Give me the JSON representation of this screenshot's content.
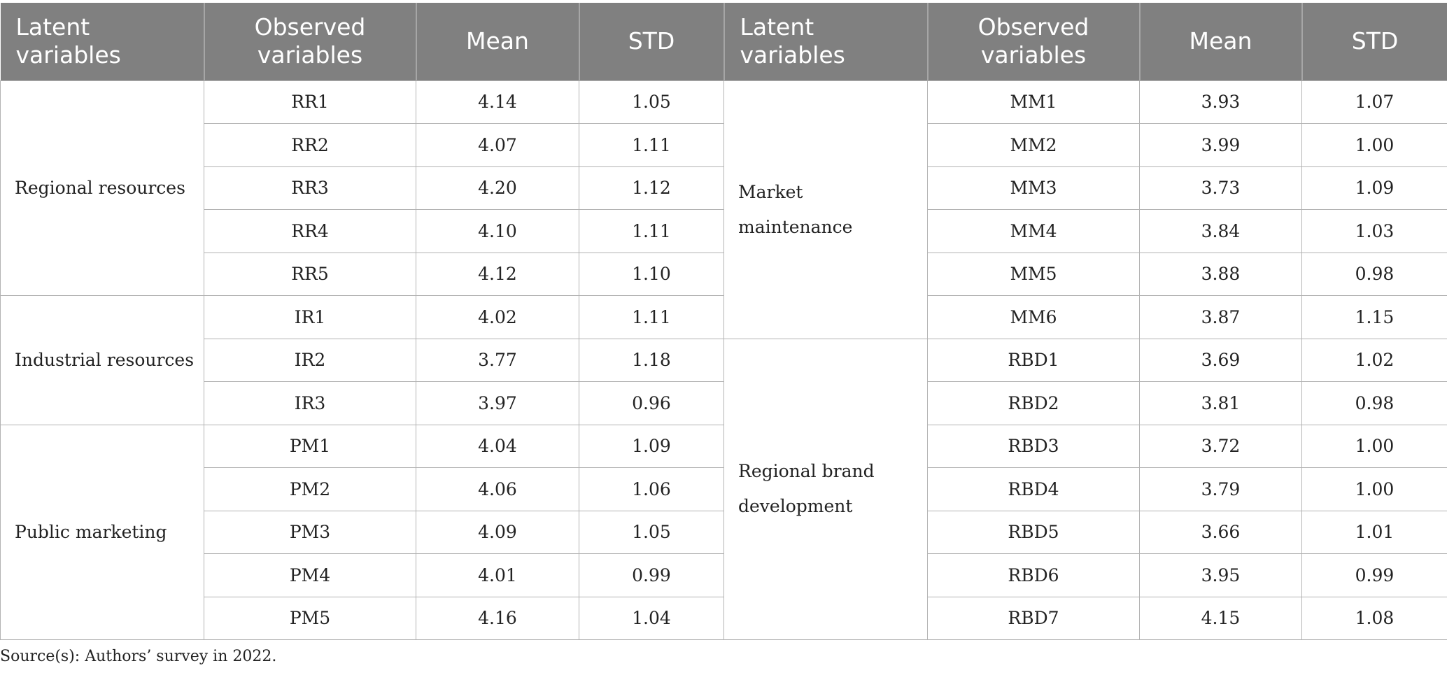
{
  "table": {
    "headers": [
      "Latent variables",
      "Observed variables",
      "Mean",
      "STD",
      "Latent variables",
      "Observed variables",
      "Mean",
      "STD"
    ],
    "left": [
      {
        "latent": "Regional resources",
        "items": [
          {
            "obs": "RR1",
            "mean": "4.14",
            "std": "1.05"
          },
          {
            "obs": "RR2",
            "mean": "4.07",
            "std": "1.11"
          },
          {
            "obs": "RR3",
            "mean": "4.20",
            "std": "1.12"
          },
          {
            "obs": "RR4",
            "mean": "4.10",
            "std": "1.11"
          },
          {
            "obs": "RR5",
            "mean": "4.12",
            "std": "1.10"
          }
        ]
      },
      {
        "latent": "Industrial resources",
        "items": [
          {
            "obs": "IR1",
            "mean": "4.02",
            "std": "1.11"
          },
          {
            "obs": "IR2",
            "mean": "3.77",
            "std": "1.18"
          },
          {
            "obs": "IR3",
            "mean": "3.97",
            "std": "0.96"
          }
        ]
      },
      {
        "latent": "Public marketing",
        "items": [
          {
            "obs": "PM1",
            "mean": "4.04",
            "std": "1.09"
          },
          {
            "obs": "PM2",
            "mean": "4.06",
            "std": "1.06"
          },
          {
            "obs": "PM3",
            "mean": "4.09",
            "std": "1.05"
          },
          {
            "obs": "PM4",
            "mean": "4.01",
            "std": "0.99"
          },
          {
            "obs": "PM5",
            "mean": "4.16",
            "std": "1.04"
          }
        ]
      }
    ],
    "right": [
      {
        "latent": "Market maintenance",
        "items": [
          {
            "obs": "MM1",
            "mean": "3.93",
            "std": "1.07"
          },
          {
            "obs": "MM2",
            "mean": "3.99",
            "std": "1.00"
          },
          {
            "obs": "MM3",
            "mean": "3.73",
            "std": "1.09"
          },
          {
            "obs": "MM4",
            "mean": "3.84",
            "std": "1.03"
          },
          {
            "obs": "MM5",
            "mean": "3.88",
            "std": "0.98"
          },
          {
            "obs": "MM6",
            "mean": "3.87",
            "std": "1.15"
          }
        ]
      },
      {
        "latent": "Regional brand development",
        "items": [
          {
            "obs": "RBD1",
            "mean": "3.69",
            "std": "1.02"
          },
          {
            "obs": "RBD2",
            "mean": "3.81",
            "std": "0.98"
          },
          {
            "obs": "RBD3",
            "mean": "3.72",
            "std": "1.00"
          },
          {
            "obs": "RBD4",
            "mean": "3.79",
            "std": "1.00"
          },
          {
            "obs": "RBD5",
            "mean": "3.66",
            "std": "1.01"
          },
          {
            "obs": "RBD6",
            "mean": "3.95",
            "std": "0.99"
          },
          {
            "obs": "RBD7",
            "mean": "4.15",
            "std": "1.08"
          }
        ]
      }
    ]
  },
  "source": "Source(s): Authors’ survey in 2022."
}
